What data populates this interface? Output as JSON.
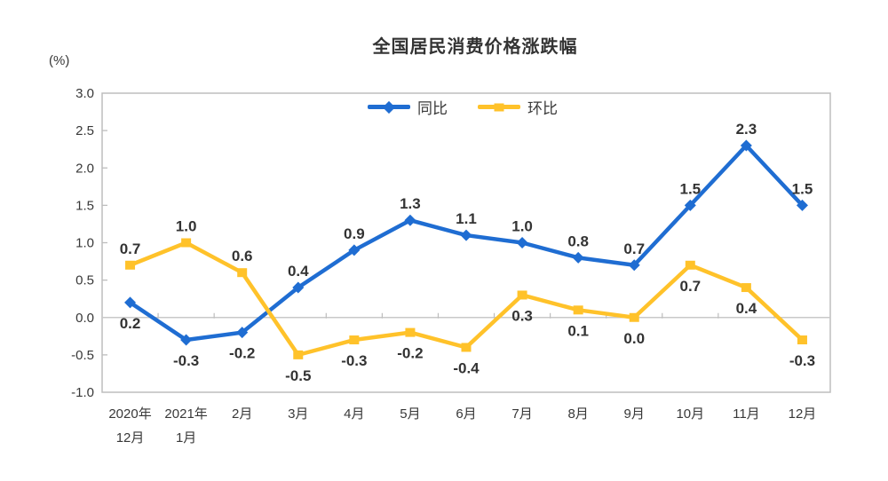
{
  "title": "全国居民消费价格涨跌幅",
  "unit_label": "(%)",
  "colors": {
    "axis": "#bdbdbd",
    "zero_line": "#c9c9c9",
    "text": "#383838",
    "data_label": "#333333"
  },
  "chart_data": {
    "type": "line",
    "title": "全国居民消费价格涨跌幅",
    "unit": "(%)",
    "categories": [
      "2020年12月",
      "2021年1月",
      "2月",
      "3月",
      "4月",
      "5月",
      "6月",
      "7月",
      "8月",
      "9月",
      "10月",
      "11月",
      "12月"
    ],
    "categories_display": [
      [
        "2020年",
        "12月"
      ],
      [
        "2021年",
        "1月"
      ],
      [
        "2月"
      ],
      [
        "3月"
      ],
      [
        "4月"
      ],
      [
        "5月"
      ],
      [
        "6月"
      ],
      [
        "7月"
      ],
      [
        "8月"
      ],
      [
        "9月"
      ],
      [
        "10月"
      ],
      [
        "11月"
      ],
      [
        "12月"
      ]
    ],
    "series": [
      {
        "name": "同比",
        "color": "#1f6dd2",
        "marker": "diamond",
        "values": [
          0.2,
          -0.3,
          -0.2,
          0.4,
          0.9,
          1.3,
          1.1,
          1.0,
          0.8,
          0.7,
          1.5,
          2.3,
          1.5
        ],
        "label_side": [
          "below",
          "below",
          "below",
          "above",
          "above",
          "above",
          "above",
          "above",
          "above",
          "above",
          "above",
          "above",
          "above"
        ]
      },
      {
        "name": "环比",
        "color": "#ffc22a",
        "marker": "square",
        "values": [
          0.7,
          1.0,
          0.6,
          -0.5,
          -0.3,
          -0.2,
          -0.4,
          0.3,
          0.1,
          0.0,
          0.7,
          0.4,
          -0.3
        ],
        "label_side": [
          "above",
          "above",
          "above",
          "below",
          "below",
          "below",
          "below",
          "below",
          "below",
          "below",
          "below",
          "below",
          "below"
        ]
      }
    ],
    "ylim": [
      -1.0,
      3.0
    ],
    "ytick_step": 0.5,
    "ytick_labels": [
      "3.0",
      "2.5",
      "2.0",
      "1.5",
      "1.0",
      "0.5",
      "0.0",
      "-0.5",
      "-1.0"
    ],
    "grid": false,
    "zero_line": true,
    "legend_position": "top-center"
  }
}
